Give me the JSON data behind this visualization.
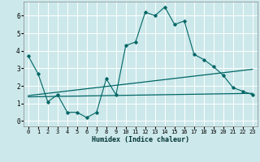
{
  "title": "",
  "xlabel": "Humidex (Indice chaleur)",
  "ylabel": "",
  "bg_color": "#cce8ea",
  "grid_color": "#ffffff",
  "line_color": "#006666",
  "xlim": [
    -0.5,
    23.5
  ],
  "ylim": [
    -0.3,
    6.8
  ],
  "xticks": [
    0,
    1,
    2,
    3,
    4,
    5,
    6,
    7,
    8,
    9,
    10,
    11,
    12,
    13,
    14,
    15,
    16,
    17,
    18,
    19,
    20,
    21,
    22,
    23
  ],
  "yticks": [
    0,
    1,
    2,
    3,
    4,
    5,
    6
  ],
  "data_line": [
    [
      0,
      3.7
    ],
    [
      1,
      2.7
    ],
    [
      2,
      1.1
    ],
    [
      3,
      1.5
    ],
    [
      4,
      0.5
    ],
    [
      5,
      0.5
    ],
    [
      6,
      0.2
    ],
    [
      7,
      0.5
    ],
    [
      8,
      2.4
    ],
    [
      9,
      1.5
    ],
    [
      10,
      4.3
    ],
    [
      11,
      4.5
    ],
    [
      12,
      6.2
    ],
    [
      13,
      6.0
    ],
    [
      14,
      6.5
    ],
    [
      15,
      5.5
    ],
    [
      16,
      5.7
    ],
    [
      17,
      3.8
    ],
    [
      18,
      3.5
    ],
    [
      19,
      3.1
    ],
    [
      20,
      2.6
    ],
    [
      21,
      1.9
    ],
    [
      22,
      1.7
    ],
    [
      23,
      1.5
    ]
  ],
  "trend_line1_x": [
    0,
    23
  ],
  "trend_line1_y": [
    1.45,
    2.95
  ],
  "trend_line2_x": [
    0,
    23
  ],
  "trend_line2_y": [
    1.38,
    1.58
  ]
}
